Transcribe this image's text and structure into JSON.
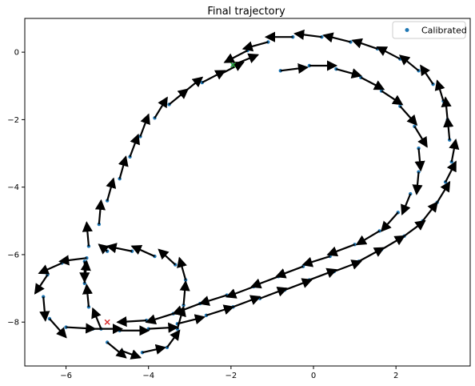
{
  "chart_data": {
    "type": "scatter",
    "title": "Final trajectory",
    "xlabel": "",
    "ylabel": "",
    "xlim": [
      -7.0,
      3.8
    ],
    "ylim": [
      -9.3,
      1.0
    ],
    "xticks": [
      -6,
      -4,
      -2,
      0,
      2
    ],
    "yticks": [
      0,
      -2,
      -4,
      -6,
      -8
    ],
    "xtick_labels": [
      "−6",
      "−4",
      "−2",
      "0",
      "2"
    ],
    "ytick_labels": [
      "0",
      "−2",
      "−4",
      "−6",
      "−8"
    ],
    "grid": false,
    "legend": {
      "position": "top-right",
      "entries": [
        "Calibrated"
      ]
    },
    "colors": {
      "points": "#1f77b4",
      "arrows": "#000000",
      "start": "#2ca02c",
      "end": "#d62728"
    },
    "start_marker": {
      "x": -1.95,
      "y": -0.38
    },
    "end_marker": {
      "x": -5.0,
      "y": -8.0
    },
    "series": [
      {
        "name": "Calibrated",
        "points": [
          [
            -1.95,
            -0.38,
            0.6,
            0.3
          ],
          [
            -2.25,
            -0.65,
            0.55,
            0.35
          ],
          [
            -2.7,
            -0.9,
            0.55,
            0.35
          ],
          [
            -3.15,
            -1.2,
            0.45,
            0.45
          ],
          [
            -3.5,
            -1.55,
            0.45,
            0.45
          ],
          [
            -3.85,
            -1.95,
            0.3,
            0.6
          ],
          [
            -4.2,
            -2.5,
            0.2,
            0.65
          ],
          [
            -4.45,
            -3.1,
            0.2,
            0.65
          ],
          [
            -4.7,
            -3.75,
            0.15,
            0.65
          ],
          [
            -5.0,
            -4.4,
            0.15,
            0.65
          ],
          [
            -5.2,
            -5.1,
            0.05,
            0.7
          ],
          [
            -5.45,
            -5.75,
            -0.05,
            0.7
          ],
          [
            -5.55,
            -6.2,
            0.0,
            -0.6
          ],
          [
            -5.55,
            -6.85,
            0.05,
            0.65
          ],
          [
            -5.45,
            -7.55,
            -0.05,
            0.65
          ],
          [
            -5.15,
            -8.2,
            -0.2,
            0.6
          ],
          [
            -5.0,
            -8.6,
            0.45,
            -0.45
          ],
          [
            -4.65,
            -8.85,
            0.45,
            -0.2
          ],
          [
            -4.15,
            -8.9,
            0.55,
            0.15
          ],
          [
            -3.55,
            -8.75,
            0.3,
            0.5
          ],
          [
            -3.3,
            -8.2,
            0.15,
            0.65
          ],
          [
            -3.15,
            -7.5,
            0.05,
            0.7
          ],
          [
            -3.1,
            -6.75,
            -0.15,
            0.65
          ],
          [
            -3.35,
            -6.3,
            -0.4,
            0.45
          ],
          [
            -3.85,
            -6.05,
            -0.55,
            0.3
          ],
          [
            -4.4,
            -5.9,
            -0.6,
            0.15
          ],
          [
            -5.0,
            -5.9,
            -0.2,
            0.2
          ],
          [
            -5.5,
            -6.1,
            -0.65,
            -0.1
          ],
          [
            -6.1,
            -6.25,
            -0.55,
            -0.3
          ],
          [
            -6.45,
            -6.6,
            -0.3,
            -0.55
          ],
          [
            -6.55,
            -7.25,
            0.05,
            -0.7
          ],
          [
            -6.4,
            -7.9,
            0.4,
            -0.55
          ],
          [
            -6.0,
            -8.15,
            0.7,
            -0.05
          ],
          [
            -5.35,
            -8.2,
            0.7,
            0.0
          ],
          [
            -4.7,
            -8.25,
            0.7,
            0.0
          ],
          [
            -4.0,
            -8.2,
            0.7,
            0.05
          ],
          [
            -3.3,
            -8.05,
            0.65,
            0.2
          ],
          [
            -2.6,
            -7.8,
            0.65,
            0.25
          ],
          [
            -1.95,
            -7.55,
            0.65,
            0.3
          ],
          [
            -1.3,
            -7.3,
            0.65,
            0.3
          ],
          [
            -0.7,
            -7.05,
            0.65,
            0.3
          ],
          [
            -0.1,
            -6.75,
            0.65,
            0.3
          ],
          [
            0.5,
            -6.5,
            0.65,
            0.3
          ],
          [
            1.1,
            -6.2,
            0.6,
            0.4
          ],
          [
            1.65,
            -5.85,
            0.55,
            0.4
          ],
          [
            2.2,
            -5.45,
            0.5,
            0.45
          ],
          [
            2.65,
            -5.0,
            0.35,
            0.55
          ],
          [
            3.0,
            -4.45,
            0.3,
            0.6
          ],
          [
            3.2,
            -3.85,
            0.25,
            0.6
          ],
          [
            3.35,
            -3.25,
            0.1,
            0.65
          ],
          [
            3.3,
            -2.6,
            -0.05,
            0.65
          ],
          [
            3.25,
            -2.0,
            -0.05,
            0.65
          ],
          [
            3.15,
            -1.45,
            -0.15,
            0.6
          ],
          [
            2.9,
            -0.95,
            -0.3,
            0.55
          ],
          [
            2.55,
            -0.55,
            -0.45,
            0.45
          ],
          [
            2.1,
            -0.2,
            -0.55,
            0.35
          ],
          [
            1.55,
            0.1,
            -0.6,
            0.25
          ],
          [
            0.9,
            0.3,
            -0.65,
            0.2
          ],
          [
            0.2,
            0.45,
            -0.65,
            0.1
          ],
          [
            -0.5,
            0.45,
            -0.65,
            0.0
          ],
          [
            -1.1,
            0.3,
            -0.6,
            -0.2
          ],
          [
            -1.6,
            0.05,
            -0.55,
            -0.35
          ],
          [
            -0.8,
            -0.55,
            0.65,
            0.1
          ],
          [
            -0.1,
            -0.4,
            0.65,
            0.0
          ],
          [
            0.55,
            -0.5,
            0.6,
            -0.2
          ],
          [
            1.15,
            -0.75,
            0.55,
            -0.35
          ],
          [
            1.65,
            -1.15,
            0.5,
            -0.4
          ],
          [
            2.1,
            -1.6,
            0.4,
            -0.55
          ],
          [
            2.45,
            -2.2,
            0.3,
            -0.6
          ],
          [
            2.55,
            -2.85,
            0.05,
            -0.65
          ],
          [
            2.55,
            -3.55,
            -0.05,
            -0.65
          ],
          [
            2.35,
            -4.2,
            -0.2,
            -0.6
          ],
          [
            2.05,
            -4.75,
            -0.4,
            -0.55
          ],
          [
            1.6,
            -5.3,
            -0.55,
            -0.4
          ],
          [
            1.0,
            -5.7,
            -0.65,
            -0.3
          ],
          [
            0.4,
            -6.05,
            -0.65,
            -0.25
          ],
          [
            -0.25,
            -6.35,
            -0.65,
            -0.3
          ],
          [
            -0.85,
            -6.65,
            -0.65,
            -0.3
          ],
          [
            -1.45,
            -6.95,
            -0.65,
            -0.3
          ],
          [
            -2.1,
            -7.2,
            -0.65,
            -0.25
          ],
          [
            -2.75,
            -7.45,
            -0.65,
            -0.3
          ],
          [
            -3.4,
            -7.75,
            -0.65,
            -0.25
          ],
          [
            -4.05,
            -7.95,
            -0.7,
            -0.05
          ]
        ]
      }
    ]
  }
}
